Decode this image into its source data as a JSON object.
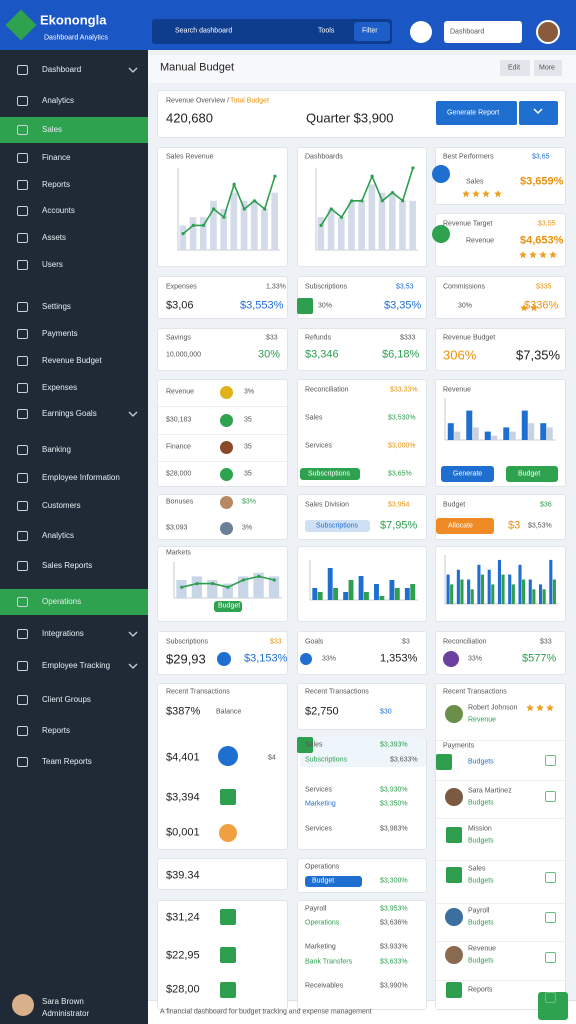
{
  "header": {
    "logo": "Ekonongla",
    "logo_sub": "Dashboard Analytics",
    "search": "Search dashboard",
    "search_hint": "Tools",
    "search_tag": "Filter",
    "dropdown": "Dashboard"
  },
  "sidebar": {
    "items": [
      "Dashboard",
      "Analytics",
      "Sales",
      "Finance",
      "Reports",
      "Accounts",
      "Assets",
      "Users",
      "Settings",
      "Payments",
      "Revenue Budget",
      "Expenses",
      "Earnings Goals",
      "Banking",
      "Employee Information",
      "Customers",
      "Analytics",
      "Sales Reports",
      "Operations",
      "Integrations",
      "Employee Tracking",
      "Client Groups",
      "Reports",
      "Team Reports"
    ],
    "user": "Sara Brown",
    "user_role": "Administrator"
  },
  "page": {
    "title": "Manual Budget",
    "actions": [
      "Edit",
      "More"
    ]
  },
  "summary": {
    "label": "Revenue Overview /",
    "label_highlight": "Total Budget",
    "total": "420,680",
    "quarter": "Quarter $3,900",
    "button": "Generate Report"
  },
  "cards": [
    [
      "Sales Revenue"
    ],
    [
      "Dashboards"
    ],
    [
      "Best Performers",
      "$3,65",
      "Sales",
      "$3,659%"
    ],
    [
      "Revenue Target",
      "$3,55",
      "Revenue",
      "$4,653%"
    ],
    [
      "Expenses",
      "1,33%",
      "$3,06",
      "$3,553%"
    ],
    [
      "Subscriptions",
      "$3,53",
      "30%",
      "$3,35%"
    ],
    [
      "Commissions",
      "$335",
      "30%",
      "$336%"
    ],
    [
      "Savings",
      "$33",
      "10,000,000",
      "30%"
    ],
    [
      "Refunds",
      "$333",
      "$3,346",
      "$6,18%"
    ],
    [
      "Revenue Budget",
      "306%",
      "$7,35%"
    ],
    [
      "Revenue",
      "3%",
      "$30,183",
      "35",
      "Finance",
      "35",
      "$28,000",
      "35"
    ],
    [
      "Reconciliation",
      "$33.33%",
      "Sales",
      "$3,530%",
      "Services",
      "$3,000%",
      "Subscriptions",
      "$3,65%"
    ],
    [
      "Revenue",
      "Generate",
      "Budget"
    ],
    [
      "Bonuses",
      "$3%",
      "$3,093",
      "3%"
    ],
    [
      "Sales Division",
      "$3,954",
      "Subscriptions",
      "$7,95%"
    ],
    [
      "Budget",
      "$36",
      "Allocate",
      "$3",
      "$3,53%"
    ],
    [
      "Markets",
      "Budget"
    ],
    [
      "Subscriptions",
      "$33",
      "$29,93",
      "$3,153%"
    ],
    [
      "Goals",
      "$3",
      "33%",
      "1,353%"
    ],
    [
      "Reconciliation",
      "$33",
      "33%",
      "$577%"
    ],
    [
      "Recent Transactions",
      "$387%",
      "Balance",
      "$4,401",
      "$4",
      "$3,394",
      "$0,001"
    ],
    [
      "$39.34"
    ],
    [
      "$31,24",
      "$22,95",
      "$28,00"
    ],
    [
      "Recent Transactions",
      "$2,750",
      "$30"
    ],
    [
      "Sales",
      "$3,393%",
      "Subscriptions",
      "$3,633%",
      "Services",
      "$3,930%",
      "Marketing",
      "$3,350%",
      "Services",
      "$3,983%"
    ],
    [
      "Operations",
      "Budget",
      "$3,300%"
    ],
    [
      "Payroll",
      "$3,953%",
      "Operations",
      "$3,636%",
      "Marketing",
      "$3,933%",
      "Bank Transfers",
      "$3,633%",
      "Receivables",
      "$3,990%"
    ],
    [
      "Recent Transactions",
      "Robert Johnson",
      "Revenue",
      "Payments",
      "Budgets",
      "Sara Martinez",
      "Budgets",
      "Mission",
      "Budgets",
      "Sales",
      "Budgets",
      "Payroll",
      "Budgets",
      "Revenue",
      "Budgets",
      "Reports"
    ]
  ],
  "footer": "A financial dashboard for budget tracking and expense management",
  "charts": [
    {
      "type": "line",
      "ylim": [
        0,
        10
      ],
      "series": [
        {
          "type": "bar",
          "color": "#d3dbe8",
          "values": [
            3,
            4,
            4,
            6,
            5,
            7,
            6,
            6,
            5,
            7
          ]
        },
        {
          "type": "line",
          "color": "#2e9e4f",
          "values": [
            2,
            3,
            3,
            5,
            4,
            8,
            5,
            6,
            5,
            9
          ]
        }
      ]
    },
    {
      "type": "line",
      "ylim": [
        0,
        10
      ],
      "series": [
        {
          "type": "bar",
          "color": "#d3dbe8",
          "values": [
            4,
            5,
            4,
            6,
            6,
            8,
            7,
            7,
            6,
            6
          ]
        },
        {
          "type": "line",
          "color": "#2e9e4f",
          "values": [
            3,
            5,
            4,
            6,
            6,
            9,
            6,
            7,
            6,
            10
          ]
        }
      ]
    },
    {
      "type": "bar",
      "ylim": [
        0,
        10
      ],
      "series": [
        {
          "type": "bar",
          "color": "#1e6fd0",
          "values": [
            4,
            7,
            2,
            3,
            7,
            4
          ]
        },
        {
          "type": "bar",
          "color": "#c9d2de",
          "values": [
            2,
            3,
            1,
            2,
            4,
            3
          ]
        }
      ]
    },
    {
      "type": "line",
      "ylim": [
        0,
        10
      ],
      "series": [
        {
          "type": "bar",
          "color": "#c9d6e8",
          "values": [
            5,
            6,
            5,
            4,
            6,
            7,
            6
          ]
        },
        {
          "type": "line",
          "color": "#2e9e4f",
          "values": [
            3,
            4,
            4,
            3,
            5,
            6,
            5
          ]
        }
      ]
    },
    {
      "type": "bar",
      "ylim": [
        0,
        10
      ],
      "series": [
        {
          "type": "bar",
          "color": "#1e6fd0",
          "values": [
            3,
            8,
            2,
            6,
            4,
            5,
            3
          ]
        },
        {
          "type": "bar",
          "color": "#2e9e4f",
          "values": [
            2,
            3,
            5,
            2,
            1,
            3,
            4
          ]
        }
      ]
    },
    {
      "type": "bar",
      "ylim": [
        0,
        10
      ],
      "series": [
        {
          "type": "bar",
          "color": "#1e6fd0",
          "values": [
            6,
            7,
            5,
            8,
            7,
            9,
            6,
            8,
            5,
            4,
            9
          ]
        },
        {
          "type": "bar",
          "color": "#2e9e4f",
          "values": [
            4,
            5,
            3,
            6,
            4,
            6,
            4,
            5,
            3,
            3,
            5
          ]
        }
      ]
    }
  ]
}
